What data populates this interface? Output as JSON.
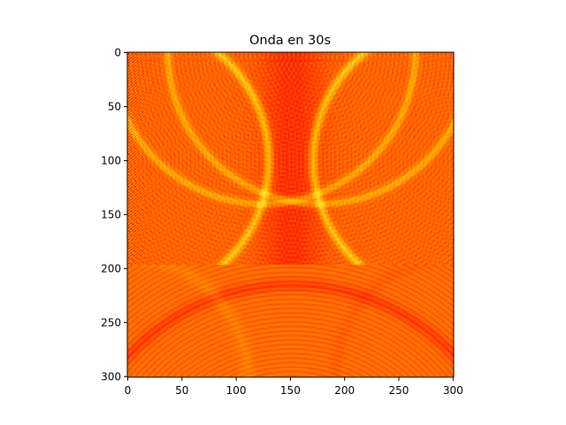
{
  "chart_data": {
    "type": "heatmap",
    "title": "Onda en 30s",
    "xlabel": "",
    "ylabel": "",
    "grid_size": [
      301,
      301
    ],
    "xlim": [
      0,
      301
    ],
    "ylim": [
      301,
      0
    ],
    "x_ticks": [
      0,
      50,
      100,
      150,
      200,
      250,
      300
    ],
    "y_ticks": [
      0,
      50,
      100,
      150,
      200,
      250,
      300
    ],
    "colormap": "hot",
    "colormap_stops": [
      "#cc0000",
      "#ff2200",
      "#ff6a00",
      "#ffa500",
      "#ffdd22"
    ],
    "upper_region_rows": [
      0,
      197
    ],
    "wave_centers": [
      [
        125,
        0
      ],
      [
        177,
        0
      ],
      [
        0,
        100
      ],
      [
        301,
        100
      ]
    ],
    "base_color": "#ff7a00"
  }
}
